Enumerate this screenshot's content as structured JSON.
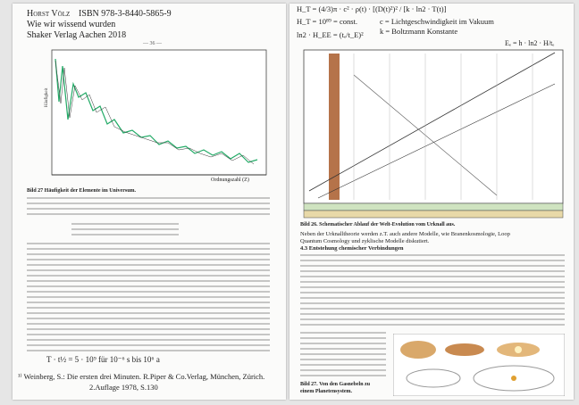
{
  "left_page": {
    "header": {
      "author": "Horst Völz",
      "isbn": "ISBN 978-3-8440-5865-9",
      "title": "Wie wir wissend wurden",
      "publisher": "Shaker Verlag Aachen 2018"
    },
    "page_number": "— 36 —",
    "figure": {
      "y_label": "Häufigkeit",
      "x_label": "Ordnungszahl (Z)",
      "caption": "Bild 27 Häufigkeit der Elemente im Universum."
    },
    "formula": "T · t½ = 5 · 10⁹   für 10⁻⁶ s bis 10⁶ a",
    "footnote": [
      "¹⁾ Weinberg, S.: Die ersten drei Minuten. R.Piper & Co.Verlag, München, Zürich.",
      "2.Auflage 1978, S.130"
    ]
  },
  "right_page": {
    "formulas": [
      "H_T = (4/3)π · c² · ρ(t) · [(D(t)²)² / [k · ln2 · T(t)]",
      "H_T = 10⁸⁹ = const.",
      "ln2 · H_EE = (tₑ/t_E)²",
      "c = Lichtgeschwindigkeit im Vakuum",
      "k = Boltzmann Konstante",
      "Eₑ = h · ln2 · H/tₑ"
    ],
    "figure": {
      "caption": "Bild 26. Schematischer Ablauf der Welt-Evolution vom Urknall aus."
    },
    "paragraph": [
      "Neben der Urknalltheorie werden z.T. auch andere Modelle, wie Branenkosmologie, Loop",
      "Quantum Cosmology und zyklische Modelle diskutiert."
    ],
    "section_heading": "4.3 Entstehung chemischer Verbindungen",
    "figure2": {
      "caption": [
        "Bild 27. Von den Gasnebeln zu",
        "einem Planetensystem."
      ]
    }
  }
}
